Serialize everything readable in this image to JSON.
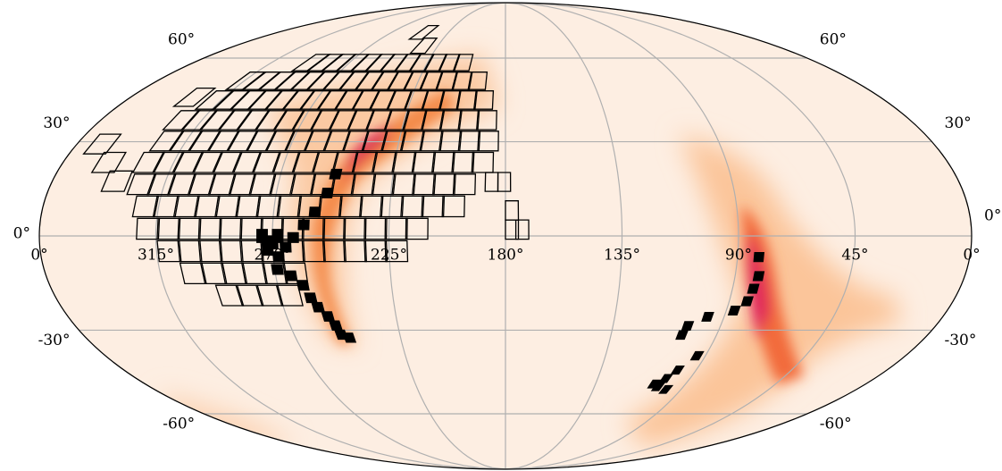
{
  "map": {
    "projection": "mollweide",
    "lon_ticks": [
      {
        "value": 360,
        "label": "0°"
      },
      {
        "value": 315,
        "label": "315°"
      },
      {
        "value": 270,
        "label": "270°"
      },
      {
        "value": 225,
        "label": "225°"
      },
      {
        "value": 180,
        "label": "180°"
      },
      {
        "value": 135,
        "label": "135°"
      },
      {
        "value": 90,
        "label": "90°"
      },
      {
        "value": 45,
        "label": "45°"
      },
      {
        "value": 0,
        "label": "0°"
      }
    ],
    "lat_ticks": [
      {
        "value": 60,
        "label": "60°"
      },
      {
        "value": 30,
        "label": "30°"
      },
      {
        "value": 0,
        "label": "0°"
      },
      {
        "value": -30,
        "label": "-30°"
      },
      {
        "value": -60,
        "label": "-60°"
      }
    ]
  }
}
